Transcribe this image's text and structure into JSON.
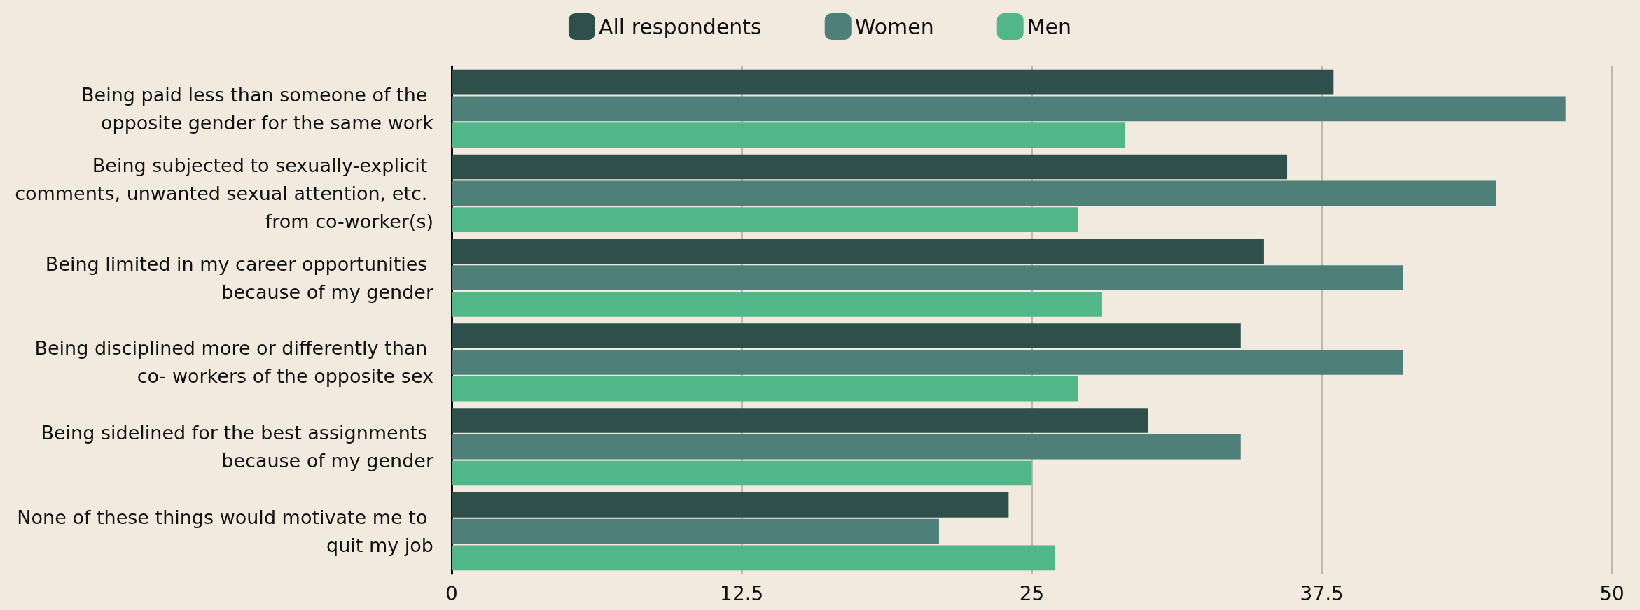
{
  "chart_data": {
    "type": "bar",
    "orientation": "horizontal",
    "categories": [
      "Being paid less than someone of the opposite gender for the same work",
      "Being subjected to sexually-explicit comments, unwanted sexual attention, etc. from co-worker(s)",
      "Being limited in my career opportunities because of my gender",
      "Being disciplined more or differently than co- workers of the opposite sex",
      "Being sidelined for the best assignments because of my gender",
      "None of these things would motivate me to quit my job"
    ],
    "series": [
      {
        "name": "All respondents",
        "color": "#2e4f4a",
        "values": [
          38,
          36,
          35,
          34,
          30,
          24
        ]
      },
      {
        "name": "Women",
        "color": "#4e7f78",
        "values": [
          48,
          45,
          41,
          41,
          34,
          21
        ]
      },
      {
        "name": "Men",
        "color": "#52b788",
        "values": [
          29,
          27,
          28,
          27,
          25,
          26
        ]
      }
    ],
    "xlim": [
      0,
      50
    ],
    "xticks": [
      0,
      12.5,
      25,
      37.5,
      50
    ],
    "grid": "x",
    "legend": "top"
  }
}
